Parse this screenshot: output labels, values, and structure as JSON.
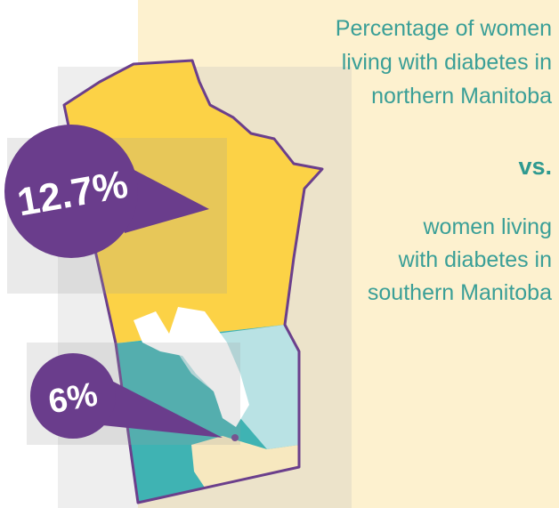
{
  "heading": [
    "Percentage of women",
    "living with diabetes in",
    "northern Manitoba"
  ],
  "vs": "vs.",
  "subheading": [
    "women living",
    "with diabetes in",
    "southern Manitoba"
  ],
  "north_label": "12.7%",
  "south_label": "6%"
}
